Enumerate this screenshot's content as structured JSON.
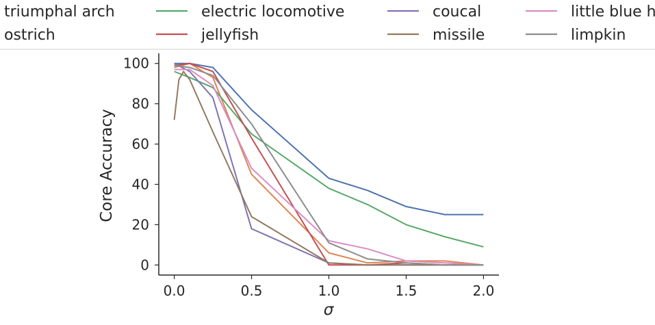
{
  "chart_data": {
    "type": "line",
    "title": "",
    "xlabel": "σ",
    "ylabel": "Core Accuracy",
    "xlim": [
      -0.1,
      2.1
    ],
    "ylim": [
      -5,
      105
    ],
    "xticks": [
      0.0,
      0.5,
      1.0,
      1.5,
      2.0
    ],
    "xtick_labels": [
      "0.0",
      "0.5",
      "1.0",
      "1.5",
      "2.0"
    ],
    "yticks": [
      0,
      20,
      40,
      60,
      80,
      100
    ],
    "ytick_labels": [
      "0",
      "20",
      "40",
      "60",
      "80",
      "100"
    ],
    "grid": false,
    "legend_position": "top",
    "legend_rows": [
      [
        "triumphal arch",
        "electric locomotive",
        "coucal",
        "little blue heron"
      ],
      [
        "ostrich",
        "jellyfish",
        "missile",
        "limpkin"
      ]
    ],
    "series": [
      {
        "name": "triumphal arch",
        "color": "#4c72b0",
        "x": [
          0.0,
          0.1,
          0.25,
          0.5,
          1.0,
          1.25,
          1.5,
          1.75,
          2.0
        ],
        "y": [
          100,
          100,
          98,
          77,
          43,
          37,
          29,
          25,
          25
        ]
      },
      {
        "name": "ostrich",
        "color": "#dd8452",
        "x": [
          0.0,
          0.1,
          0.25,
          0.5,
          1.0,
          1.25,
          1.5,
          1.75,
          2.0
        ],
        "y": [
          98,
          100,
          93,
          45,
          6,
          1,
          2,
          2,
          0
        ]
      },
      {
        "name": "electric locomotive",
        "color": "#55a868",
        "x": [
          0.0,
          0.1,
          0.25,
          0.5,
          1.0,
          1.25,
          1.5,
          1.75,
          2.0
        ],
        "y": [
          96,
          93,
          88,
          65,
          38,
          30,
          20,
          14,
          9
        ]
      },
      {
        "name": "jellyfish",
        "color": "#c44e52",
        "x": [
          0.0,
          0.1,
          0.25,
          0.5,
          1.0,
          1.25,
          1.5,
          1.75,
          2.0
        ],
        "y": [
          99,
          100,
          96,
          63,
          0,
          0,
          1,
          0,
          0
        ]
      },
      {
        "name": "coucal",
        "color": "#8172b3",
        "x": [
          0.0,
          0.1,
          0.25,
          0.5,
          1.0,
          1.25,
          1.5,
          1.75,
          2.0
        ],
        "y": [
          100,
          96,
          83,
          18,
          1,
          0,
          0,
          0,
          0
        ]
      },
      {
        "name": "missile",
        "color": "#937860",
        "x": [
          0.0,
          0.03,
          0.06,
          0.1,
          0.25,
          0.5,
          1.0,
          1.25,
          1.5,
          1.75,
          2.0
        ],
        "y": [
          72,
          92,
          96,
          92,
          66,
          24,
          1,
          0,
          0,
          0,
          0
        ]
      },
      {
        "name": "little blue heron",
        "color": "#da8bc3",
        "x": [
          0.0,
          0.1,
          0.25,
          0.5,
          1.0,
          1.25,
          1.5,
          1.75,
          2.0
        ],
        "y": [
          97,
          97,
          89,
          48,
          12,
          8,
          2,
          1,
          0
        ]
      },
      {
        "name": "limpkin",
        "color": "#8c8c8c",
        "x": [
          0.0,
          0.1,
          0.25,
          0.5,
          1.0,
          1.25,
          1.5,
          1.75,
          2.0
        ],
        "y": [
          99,
          98,
          94,
          70,
          11,
          3,
          1,
          0,
          0
        ]
      }
    ]
  }
}
